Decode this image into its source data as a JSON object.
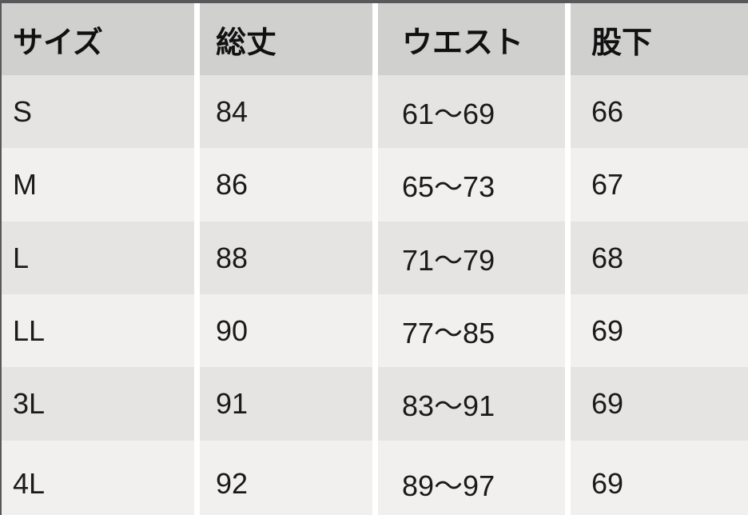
{
  "chart_data": {
    "type": "table",
    "title": "size-chart",
    "columns": [
      "サイズ",
      "総丈",
      "ウエスト",
      "股下"
    ],
    "rows": [
      [
        "S",
        "84",
        "61〜69",
        "66"
      ],
      [
        "M",
        "86",
        "65〜73",
        "67"
      ],
      [
        "L",
        "88",
        "71〜79",
        "68"
      ],
      [
        "LL",
        "90",
        "77〜85",
        "69"
      ],
      [
        "3L",
        "91",
        "83〜91",
        "69"
      ],
      [
        "4L",
        "92",
        "89〜97",
        "69"
      ]
    ]
  },
  "colors": {
    "border": "#58585a",
    "header_bg": "#d0d0cf",
    "row_odd_bg": "#e6e4e2",
    "row_even_bg": "#f1f0ee",
    "separator": "#ffffff",
    "text": "#1a1a1a"
  }
}
